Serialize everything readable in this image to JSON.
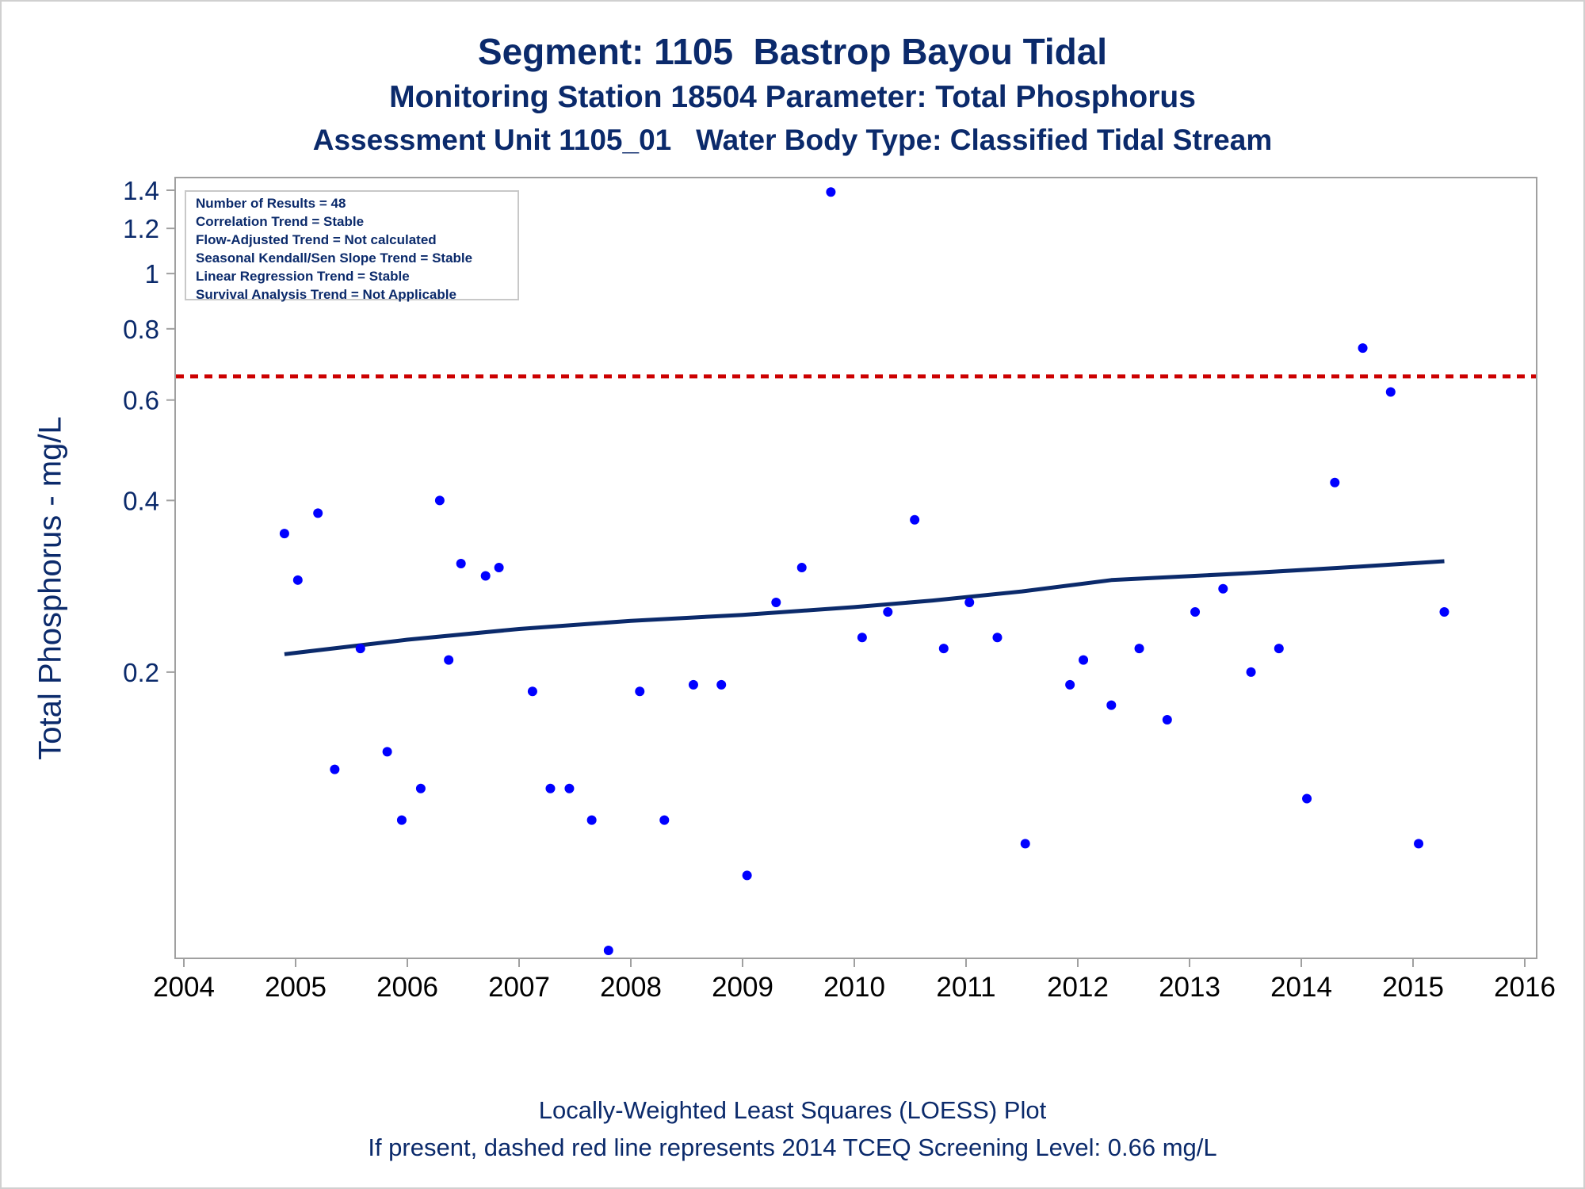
{
  "title": "Segment: 1105  Bastrop Bayou Tidal",
  "subtitle1": "Monitoring Station 18504 Parameter: Total Phosphorus",
  "subtitle2": "Assessment Unit 1105_01   Water Body Type: Classified Tidal Stream",
  "footnote1": "Locally-Weighted Least Squares (LOESS) Plot",
  "footnote2": "If present, dashed red line represents 2014 TCEQ Screening Level: 0.66 mg/L",
  "info_box": [
    "Number of Results = 48",
    "Correlation Trend = Stable",
    "Flow-Adjusted Trend = Not calculated",
    "Seasonal Kendall/Sen Slope Trend = Stable",
    "Linear Regression Trend = Stable",
    "Survival Analysis Trend = Not Applicable"
  ],
  "colors": {
    "text": "#0b2a6b",
    "points": "#0000ff",
    "loess": "#0b2a6b",
    "screening_line": "#cc0000",
    "axes": "#a0a0a0"
  },
  "chart_data": {
    "type": "scatter",
    "xlabel": "",
    "ylabel": "Total Phosphorus - mg/L",
    "xlim": [
      2004,
      2016
    ],
    "xticks": [
      2004,
      2005,
      2006,
      2007,
      2008,
      2009,
      2010,
      2011,
      2012,
      2013,
      2014,
      2015,
      2016
    ],
    "ylim": [
      0.06,
      1.45
    ],
    "yscale": "log",
    "yticks": [
      0.2,
      0.4,
      0.6,
      0.8,
      1,
      1.2,
      1.4
    ],
    "grid": false,
    "screening_level": 0.66,
    "series": [
      {
        "type": "scatter",
        "points": [
          [
            2004.9,
            0.35
          ],
          [
            2005.02,
            0.29
          ],
          [
            2005.2,
            0.38
          ],
          [
            2005.35,
            0.135
          ],
          [
            2005.58,
            0.22
          ],
          [
            2005.82,
            0.145
          ],
          [
            2005.95,
            0.11
          ],
          [
            2006.12,
            0.125
          ],
          [
            2006.29,
            0.4
          ],
          [
            2006.37,
            0.21
          ],
          [
            2006.48,
            0.31
          ],
          [
            2006.7,
            0.295
          ],
          [
            2006.82,
            0.305
          ],
          [
            2007.12,
            0.185
          ],
          [
            2007.28,
            0.125
          ],
          [
            2007.45,
            0.125
          ],
          [
            2007.65,
            0.11
          ],
          [
            2007.8,
            0.065
          ],
          [
            2008.08,
            0.185
          ],
          [
            2008.3,
            0.11
          ],
          [
            2008.56,
            0.19
          ],
          [
            2008.81,
            0.19
          ],
          [
            2009.04,
            0.088
          ],
          [
            2009.3,
            0.265
          ],
          [
            2009.53,
            0.305
          ],
          [
            2009.79,
            1.39
          ],
          [
            2010.07,
            0.23
          ],
          [
            2010.3,
            0.255
          ],
          [
            2010.54,
            0.37
          ],
          [
            2010.8,
            0.22
          ],
          [
            2011.03,
            0.265
          ],
          [
            2011.28,
            0.23
          ],
          [
            2011.53,
            0.1
          ],
          [
            2011.93,
            0.19
          ],
          [
            2012.05,
            0.21
          ],
          [
            2012.3,
            0.175
          ],
          [
            2012.55,
            0.22
          ],
          [
            2012.8,
            0.165
          ],
          [
            2013.05,
            0.255
          ],
          [
            2013.3,
            0.28
          ],
          [
            2013.55,
            0.2
          ],
          [
            2013.8,
            0.22
          ],
          [
            2014.05,
            0.12
          ],
          [
            2014.3,
            0.43
          ],
          [
            2014.55,
            0.74
          ],
          [
            2014.8,
            0.62
          ],
          [
            2015.05,
            0.1
          ],
          [
            2015.28,
            0.255
          ]
        ]
      },
      {
        "type": "line",
        "points": [
          [
            2004.9,
            0.215
          ],
          [
            2006.0,
            0.228
          ],
          [
            2007.0,
            0.238
          ],
          [
            2008.0,
            0.246
          ],
          [
            2009.0,
            0.252
          ],
          [
            2010.0,
            0.26
          ],
          [
            2010.7,
            0.267
          ],
          [
            2011.5,
            0.277
          ],
          [
            2012.3,
            0.29
          ],
          [
            2013.5,
            0.298
          ],
          [
            2014.5,
            0.306
          ],
          [
            2015.28,
            0.313
          ]
        ]
      }
    ]
  }
}
